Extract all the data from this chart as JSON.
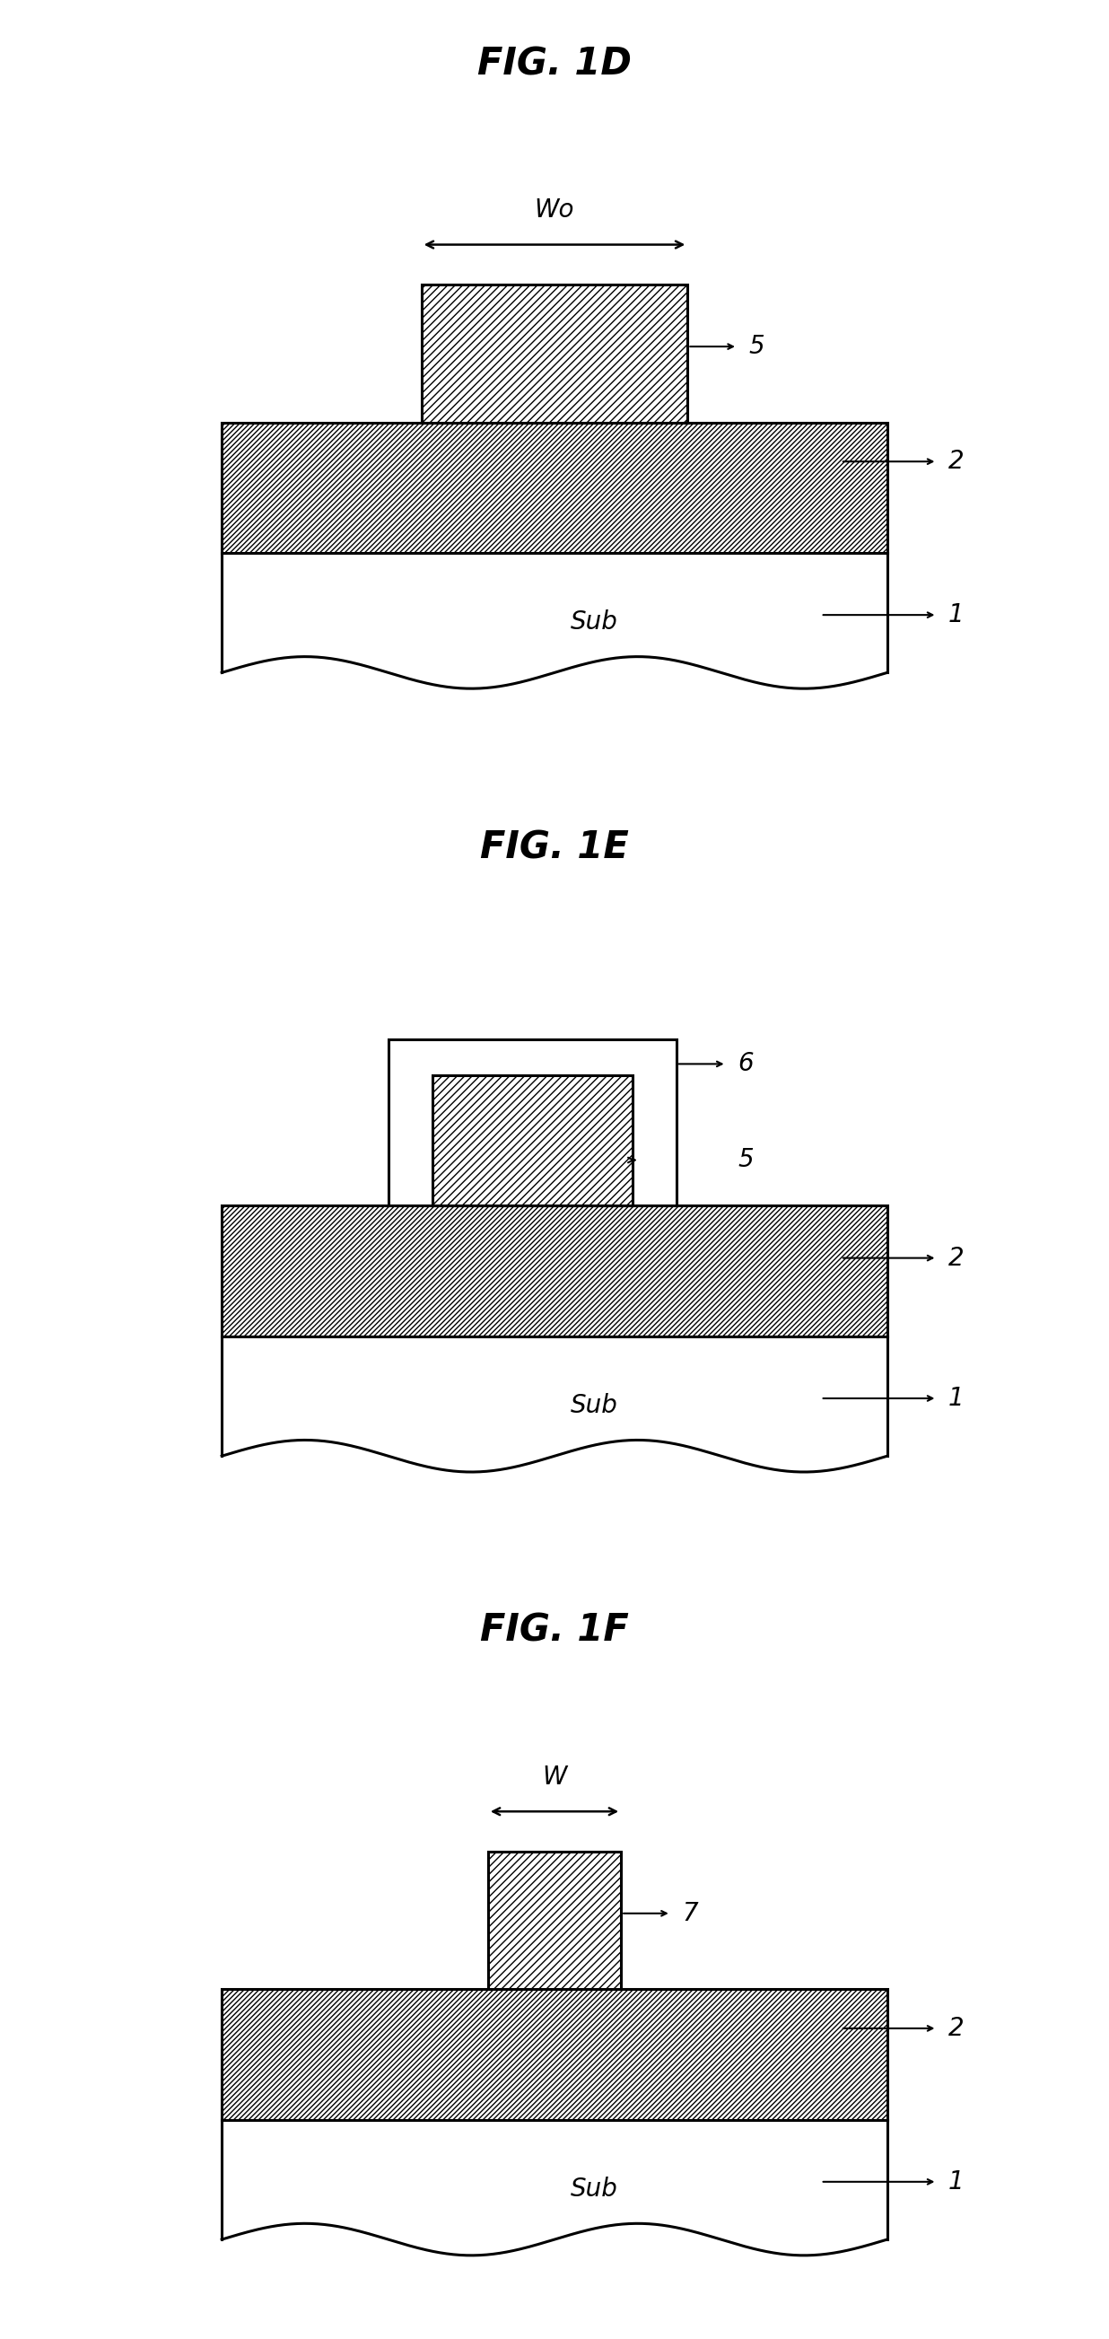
{
  "fig_width": 12.36,
  "fig_height": 26.06,
  "bg_color": "#ffffff",
  "line_color": "#000000",
  "line_width": 2.2,
  "hatch_layer": "////",
  "hatch_fin": "////",
  "font_size_title": 30,
  "font_size_label": 20,
  "font_size_num": 20,
  "panels": [
    {
      "title": "FIG. 1D",
      "fin_label": "5",
      "fin_dim_label": "Wo",
      "layer2_label": "2",
      "sub_label": "Sub",
      "sub_num": "1"
    },
    {
      "title": "FIG. 1E",
      "fin_label": "5",
      "outer_label": "6",
      "layer2_label": "2",
      "sub_label": "Sub",
      "sub_num": "1"
    },
    {
      "title": "FIG. 1F",
      "fin_label": "7",
      "fin_dim_label": "W",
      "layer2_label": "2",
      "sub_label": "Sub",
      "sub_num": "1"
    }
  ]
}
